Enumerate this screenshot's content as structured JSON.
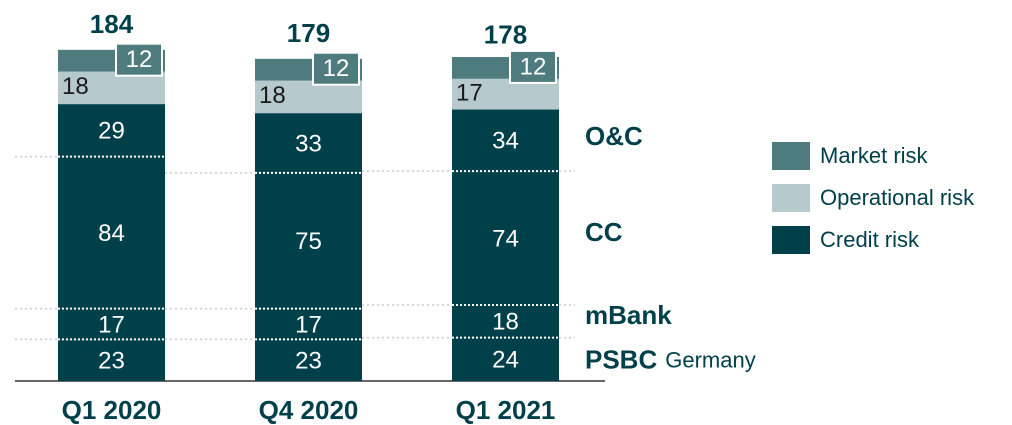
{
  "chart_data": {
    "type": "stacked_bar",
    "categories": [
      "Q1 2020",
      "Q4 2020",
      "Q1 2021"
    ],
    "totals": [
      184,
      179,
      178
    ],
    "series": [
      {
        "name": "PSBC",
        "color": "#00404a",
        "values": [
          23,
          23,
          24
        ]
      },
      {
        "name": "mBank",
        "color": "#00404a",
        "values": [
          17,
          17,
          18
        ]
      },
      {
        "name": "CC",
        "color": "#00404a",
        "values": [
          84,
          75,
          74
        ]
      },
      {
        "name": "O&C",
        "color": "#00404a",
        "values": [
          29,
          33,
          34
        ]
      },
      {
        "name": "Operational risk",
        "color": "#b6c9cc",
        "values": [
          18,
          18,
          17
        ]
      },
      {
        "name": "Market risk",
        "color": "#4e7b7e",
        "values": [
          12,
          12,
          12
        ]
      }
    ],
    "annotation": "Germany",
    "legend": [
      {
        "name": "Market risk",
        "color": "#4e7b7e"
      },
      {
        "name": "Operational risk",
        "color": "#b6c9cc"
      },
      {
        "name": "Credit risk",
        "color": "#00404a"
      }
    ]
  }
}
